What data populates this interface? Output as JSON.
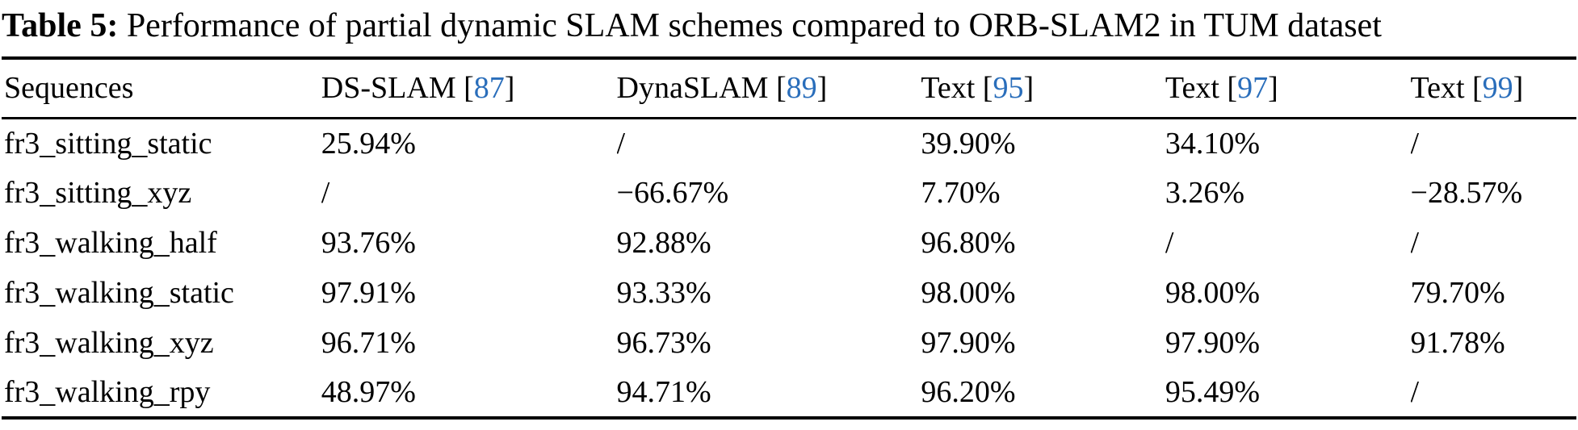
{
  "caption": {
    "label": "Table 5:",
    "text": " Performance of partial dynamic SLAM schemes compared to ORB-SLAM2 in TUM dataset"
  },
  "colors": {
    "citation_link": "#2a6ebb",
    "text": "#000000",
    "rule": "#000000"
  },
  "table": {
    "columns": [
      {
        "label": "Sequences",
        "ref": null
      },
      {
        "label": "DS-SLAM",
        "ref": "87"
      },
      {
        "label": "DynaSLAM",
        "ref": "89"
      },
      {
        "label": "Text",
        "ref": "95"
      },
      {
        "label": "Text",
        "ref": "97"
      },
      {
        "label": "Text",
        "ref": "99"
      }
    ],
    "rows": [
      {
        "sequence": "fr3_sitting_static",
        "values": [
          "25.94%",
          "/",
          "39.90%",
          "34.10%",
          "/"
        ]
      },
      {
        "sequence": "fr3_sitting_xyz",
        "values": [
          "/",
          "−66.67%",
          "7.70%",
          "3.26%",
          "−28.57%"
        ]
      },
      {
        "sequence": "fr3_walking_half",
        "values": [
          "93.76%",
          "92.88%",
          "96.80%",
          "/",
          "/"
        ]
      },
      {
        "sequence": "fr3_walking_static",
        "values": [
          "97.91%",
          "93.33%",
          "98.00%",
          "98.00%",
          "79.70%"
        ]
      },
      {
        "sequence": "fr3_walking_xyz",
        "values": [
          "96.71%",
          "96.73%",
          "97.90%",
          "97.90%",
          "91.78%"
        ]
      },
      {
        "sequence": "fr3_walking_rpy",
        "values": [
          "48.97%",
          "94.71%",
          "96.20%",
          "95.49%",
          "/"
        ]
      }
    ]
  }
}
